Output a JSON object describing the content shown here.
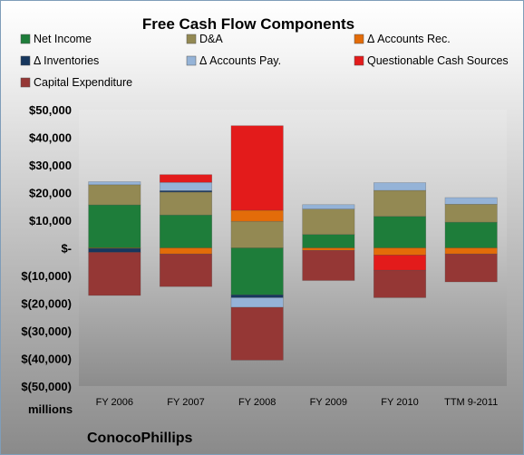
{
  "chart_data": {
    "type": "bar",
    "stacked": true,
    "title": "Free Cash Flow Components",
    "units": "millions",
    "company": "ConocoPhillips",
    "categories": [
      "FY 2006",
      "FY 2007",
      "FY 2008",
      "FY 2009",
      "FY 2010",
      "TTM 9-2011"
    ],
    "ylim": [
      -50000,
      50000
    ],
    "yticks": [
      {
        "value": 50000,
        "label": "$50,000"
      },
      {
        "value": 40000,
        "label": "$40,000"
      },
      {
        "value": 30000,
        "label": "$30,000"
      },
      {
        "value": 20000,
        "label": "$20,000"
      },
      {
        "value": 10000,
        "label": "$10,000"
      },
      {
        "value": 0,
        "label": "$-"
      },
      {
        "value": -10000,
        "label": "$(10,000)"
      },
      {
        "value": -20000,
        "label": "$(20,000)"
      },
      {
        "value": -30000,
        "label": "$(30,000)"
      },
      {
        "value": -40000,
        "label": "$(40,000)"
      },
      {
        "value": -50000,
        "label": "$(50,000)"
      }
    ],
    "legend_position": "top",
    "series": [
      {
        "name": "Net Income",
        "color": "#1e7d3a",
        "values": [
          15550,
          11900,
          -17000,
          4850,
          11400,
          9300
        ]
      },
      {
        "name": "D&A",
        "color": "#938953",
        "values": [
          7300,
          8300,
          9600,
          9200,
          9400,
          6500
        ]
      },
      {
        "name": "Δ Accounts Rec.",
        "color": "#e36c09",
        "values": [
          -200,
          -2200,
          4000,
          -900,
          -2600,
          -2200
        ]
      },
      {
        "name": "Δ Inventories",
        "color": "#17375e",
        "values": [
          -1400,
          500,
          -1000,
          0,
          0,
          0
        ]
      },
      {
        "name": "Δ Accounts Pay.",
        "color": "#95b3d7",
        "values": [
          1100,
          3000,
          -3500,
          1600,
          2800,
          2400
        ]
      },
      {
        "name": "Questionable Cash Sources",
        "color": "#e31b1b",
        "values": [
          0,
          2800,
          30600,
          0,
          -5500,
          0
        ]
      },
      {
        "name": "Capital Expenditure",
        "color": "#953735",
        "values": [
          -15600,
          -11800,
          -19100,
          -10900,
          -9900,
          -10100
        ]
      }
    ]
  }
}
